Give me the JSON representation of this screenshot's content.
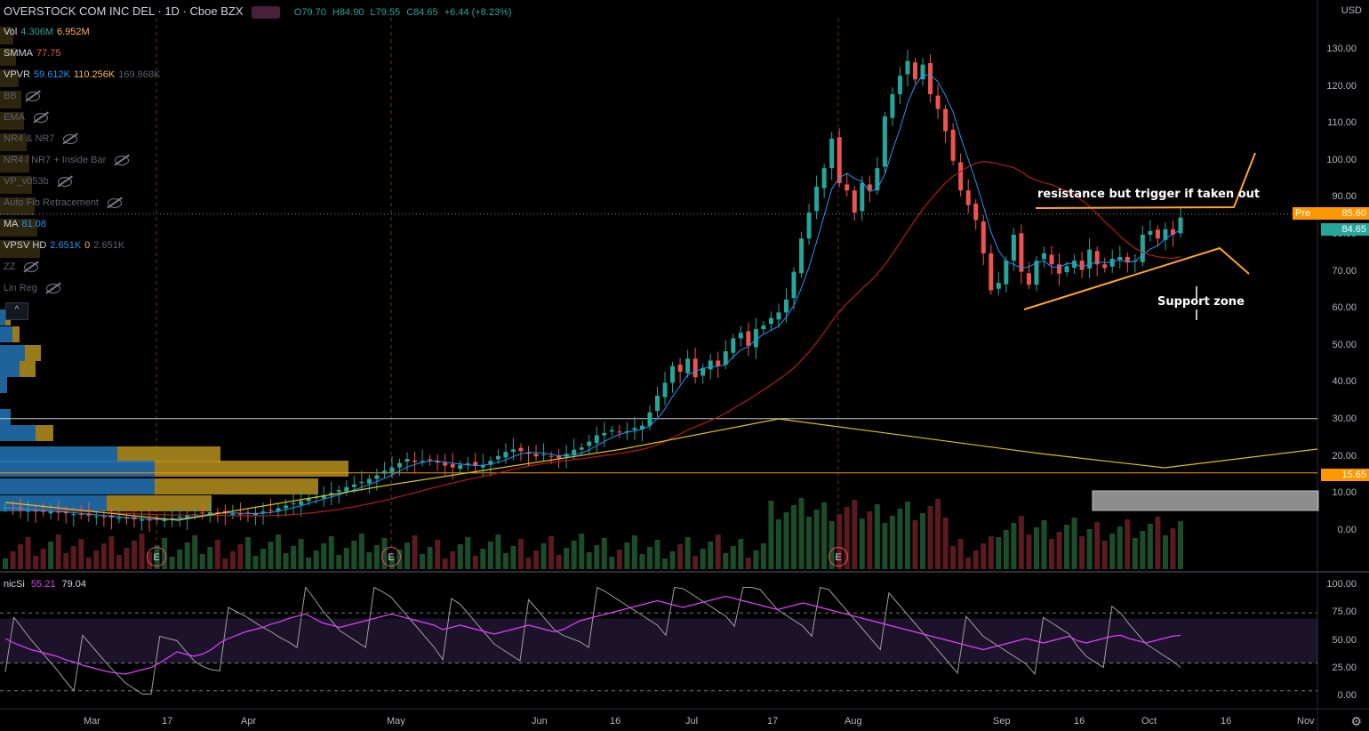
{
  "header": {
    "symbol": "OVERSTOCK COM INC DEL",
    "interval": "1D",
    "exchange": "Cboe BZX",
    "open_label": "O79.70",
    "high_label": "H84.90",
    "low_label": "L79.55",
    "close_label": "C84.65",
    "change_label": "+6.44 (+8.23%)"
  },
  "indicators": [
    {
      "name": "Vol",
      "values": [
        "4.306M",
        "6.952M"
      ],
      "hidden": false,
      "color": "#26a69a"
    },
    {
      "name": "SMMA",
      "values": [
        "77.75"
      ],
      "hidden": false,
      "color": "#ef5350"
    },
    {
      "name": "VPVR",
      "values": [
        "59.612K",
        "110.256K",
        "169.868K"
      ],
      "hidden": false,
      "color": "#2196f3"
    },
    {
      "name": "BB",
      "values": [],
      "hidden": true
    },
    {
      "name": "EMA",
      "values": [],
      "hidden": true
    },
    {
      "name": "NR4 & NR7",
      "values": [],
      "hidden": true
    },
    {
      "name": "NR4 / NR7 + Inside Bar",
      "values": [],
      "hidden": true
    },
    {
      "name": "VP_v053b",
      "values": [],
      "hidden": true
    },
    {
      "name": "Auto Fib Retracement",
      "values": [],
      "hidden": true
    },
    {
      "name": "MA",
      "values": [
        "81.08"
      ],
      "hidden": false,
      "color": "#2196f3"
    },
    {
      "name": "VPSV HD",
      "values": [
        "2.651K",
        "0",
        "2.651K"
      ],
      "hidden": false,
      "color": "#2196f3"
    },
    {
      "name": "ZZ",
      "values": [],
      "hidden": true
    },
    {
      "name": "Lin Reg",
      "values": [],
      "hidden": true
    }
  ],
  "price_axis": {
    "currency": "USD",
    "ticks": [
      "130.00",
      "120.00",
      "110.00",
      "100.00",
      "90.00",
      "80.00",
      "70.00",
      "60.00",
      "50.00",
      "40.00",
      "30.00",
      "20.00",
      "10.00",
      "0.00"
    ],
    "pre_label": "Pre",
    "pre_price": "85.60",
    "last_price": "84.65",
    "support_line_price": "15.65"
  },
  "rsi": {
    "name": "nicSi",
    "value1": "55.21",
    "value2": "79.04",
    "ticks": [
      "100.00",
      "75.00",
      "50.00",
      "25.00",
      "0.00"
    ]
  },
  "time_axis": [
    "Mar",
    "17",
    "Apr",
    "May",
    "Jun",
    "16",
    "Jul",
    "17",
    "Aug",
    "Sep",
    "16",
    "Oct",
    "16",
    "Nov"
  ],
  "earnings_label": "E",
  "annotations": {
    "resistance": "resistance but trigger if taken out",
    "support": "Support zone"
  },
  "chart_data": {
    "type": "candlestick",
    "ylim": [
      -10,
      140
    ],
    "prices": [
      6.2,
      6.0,
      5.6,
      5.4,
      5.3,
      5.1,
      5.2,
      4.9,
      4.7,
      4.5,
      4.3,
      4.1,
      3.9,
      3.8,
      3.6,
      3.5,
      3.3,
      3.1,
      3.0,
      2.9,
      3.0,
      3.2,
      3.4,
      3.8,
      4.2,
      4.5,
      4.8,
      5.0,
      4.9,
      4.7,
      4.6,
      4.5,
      4.6,
      4.8,
      5.2,
      5.6,
      6.1,
      6.8,
      7.4,
      8.0,
      8.6,
      9.1,
      9.6,
      10.2,
      11.0,
      11.8,
      12.5,
      13.2,
      14.0,
      15.0,
      16.2,
      17.1,
      18.3,
      19.4,
      18.6,
      18.9,
      19.2,
      18.4,
      17.6,
      17.1,
      17.8,
      18.2,
      17.5,
      17.8,
      18.9,
      20.2,
      21.3,
      22.0,
      21.5,
      20.8,
      20.1,
      20.6,
      20.2,
      19.6,
      20.8,
      21.9,
      22.5,
      24.1,
      25.8,
      26.4,
      27.2,
      26.7,
      26.9,
      27.8,
      28.4,
      32.0,
      36.5,
      40.0,
      44.5,
      43.0,
      46.5,
      41.5,
      44.0,
      46.0,
      44.5,
      48.5,
      52.0,
      53.5,
      50.0,
      54.5,
      55.5,
      57.5,
      59.0,
      62.5,
      70.0,
      79.0,
      86.0,
      93.0,
      98.0,
      106.0,
      94.0,
      92.0,
      86.0,
      94.0,
      92.0,
      98.0,
      112.0,
      118.0,
      123.0,
      127.0,
      122.0,
      126.0,
      118.0,
      114.0,
      108.0,
      100.0,
      92.0,
      88.0,
      84.0,
      75.0,
      65.0,
      67.0,
      73.0,
      80.0,
      70.0,
      66.5,
      73.0,
      75.0,
      72.0,
      69.5,
      71.5,
      73.0,
      70.5,
      76.0,
      72.0,
      71.0,
      73.5,
      74.0,
      72.5,
      73.0,
      80.0,
      81.0,
      79.0,
      81.5,
      80.0,
      84.65
    ],
    "earnings_x": [
      176,
      440,
      943
    ],
    "resistance_price": 87.5,
    "support_line_price": 15.65,
    "horizontal_line_price": 30.3,
    "rsi": [
      52,
      48,
      45,
      42,
      40,
      38,
      36,
      33,
      31,
      28,
      26,
      24,
      22,
      21,
      20,
      22,
      24,
      26,
      30,
      35,
      40,
      38,
      36,
      38,
      42,
      48,
      52,
      55,
      58,
      60,
      62,
      65,
      67,
      70,
      72,
      74,
      70,
      66,
      64,
      62,
      64,
      66,
      68,
      70,
      72,
      74,
      72,
      70,
      68,
      66,
      64,
      60,
      62,
      64,
      62,
      60,
      58,
      56,
      58,
      60,
      62,
      64,
      62,
      60,
      58,
      60,
      64,
      68,
      70,
      72,
      74,
      76,
      78,
      80,
      82,
      84,
      86,
      84,
      82,
      80,
      82,
      84,
      86,
      88,
      90,
      88,
      86,
      84,
      82,
      80,
      78,
      80,
      82,
      84,
      82,
      80,
      78,
      76,
      74,
      72,
      70,
      68,
      66,
      64,
      62,
      60,
      58,
      56,
      54,
      52,
      50,
      48,
      46,
      44,
      42,
      44,
      46,
      48,
      50,
      52,
      50,
      48,
      50,
      52,
      54,
      50,
      48,
      50,
      52,
      54,
      55,
      52,
      50,
      48,
      50,
      52,
      54,
      55
    ]
  }
}
